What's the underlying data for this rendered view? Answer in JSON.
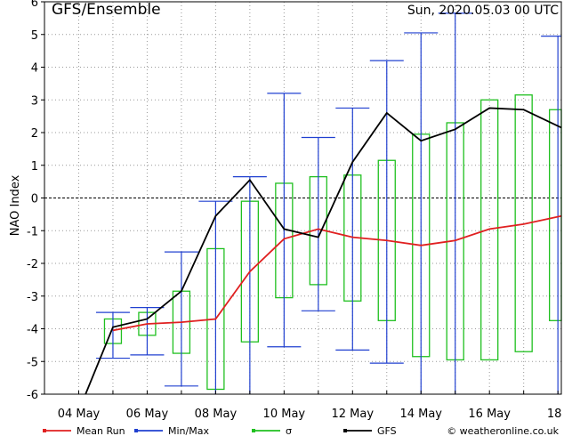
{
  "chart_data": {
    "type": "line",
    "title": "GFS/Ensemble",
    "date_label": "Sun, 2020.05.03   00 UTC",
    "ylabel": "NAO Index",
    "ylim": [
      -6,
      6
    ],
    "y_ticks": [
      -6,
      -5,
      -4,
      -3,
      -2,
      -1,
      0,
      1,
      2,
      3,
      4,
      5,
      6
    ],
    "x_ticks": [
      "04 May",
      "06 May",
      "08 May",
      "10 May",
      "12 May",
      "14 May",
      "16 May",
      "18"
    ],
    "x_tick_values": [
      4,
      6,
      8,
      10,
      12,
      14,
      16,
      18
    ],
    "xlim": [
      3,
      18.1
    ],
    "grid": true,
    "legend_position": "bottom",
    "copyright": "© weatheronline.co.uk",
    "colors": {
      "mean": "#e02020",
      "minmax": "#2040d0",
      "sigma": "#20c020",
      "gfs": "#000000",
      "grid": "#999999"
    },
    "series": [
      {
        "name": "Mean Run",
        "x": [
          5,
          6,
          7,
          8,
          9,
          10,
          11,
          12,
          13,
          14,
          15,
          16,
          17,
          18.1
        ],
        "values": [
          -4.05,
          -3.85,
          -3.8,
          -3.7,
          -2.25,
          -1.25,
          -0.95,
          -1.2,
          -1.3,
          -1.45,
          -1.3,
          -0.95,
          -0.8,
          -0.55
        ]
      },
      {
        "name": "Min/Max",
        "x": [
          5,
          6,
          7,
          8,
          9,
          10,
          11,
          12,
          13,
          14,
          15,
          18
        ],
        "min": [
          -4.9,
          -4.8,
          -5.75,
          -6,
          -6,
          -4.55,
          -3.45,
          -4.65,
          -5.05,
          -6,
          -6,
          -6
        ],
        "max": [
          -3.5,
          -3.35,
          -1.65,
          -0.1,
          0.65,
          3.2,
          1.85,
          2.75,
          4.2,
          5.05,
          5.65,
          4.95
        ]
      },
      {
        "name": "σ",
        "x": [
          5,
          6,
          7,
          8,
          9,
          10,
          11,
          12,
          13,
          14,
          15,
          16,
          17,
          18
        ],
        "low": [
          -4.45,
          -4.2,
          -4.75,
          -5.85,
          -4.4,
          -3.05,
          -2.65,
          -3.15,
          -3.75,
          -4.85,
          -4.95,
          -4.95,
          -4.7,
          -3.75
        ],
        "high": [
          -3.7,
          -3.5,
          -2.85,
          -1.55,
          -0.1,
          0.45,
          0.65,
          0.7,
          1.15,
          1.95,
          2.3,
          3.0,
          3.15,
          2.7
        ]
      },
      {
        "name": "GFS",
        "x": [
          4.2,
          5,
          6,
          7,
          8,
          9,
          10,
          11,
          12,
          13,
          14,
          15,
          16,
          17,
          18.1
        ],
        "values": [
          -6,
          -3.95,
          -3.7,
          -2.85,
          -0.55,
          0.55,
          -0.95,
          -1.2,
          1.1,
          2.6,
          1.75,
          2.1,
          2.75,
          2.7,
          2.15
        ]
      }
    ]
  }
}
